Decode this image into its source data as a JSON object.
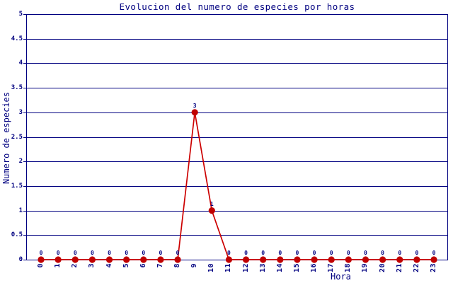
{
  "title": "Evolucion del numero de especies por horas",
  "colors": {
    "axis": "#000080",
    "grid": "#000080",
    "text": "#000080",
    "line": "#cc0000",
    "point_fill": "#c00000",
    "background": "#ffffff"
  },
  "chart_data": {
    "type": "line",
    "title": "Evolucion del numero de especies por horas",
    "xlabel": "Hora",
    "ylabel": "Numero de especies",
    "categories": [
      "0",
      "1",
      "2",
      "3",
      "4",
      "5",
      "6",
      "7",
      "8",
      "9",
      "10",
      "11",
      "12",
      "13",
      "14",
      "15",
      "16",
      "17",
      "18",
      "19",
      "20",
      "21",
      "22",
      "23"
    ],
    "values": [
      0,
      0,
      0,
      0,
      0,
      0,
      0,
      0,
      0,
      3,
      1,
      0,
      0,
      0,
      0,
      0,
      0,
      0,
      0,
      0,
      0,
      0,
      0,
      0
    ],
    "point_labels": [
      "0",
      "0",
      "0",
      "0",
      "0",
      "0",
      "0",
      "0",
      "0",
      "3",
      "1",
      "0",
      "0",
      "0",
      "0",
      "0",
      "0",
      "0",
      "0",
      "0",
      "0",
      "0",
      "0",
      "0"
    ],
    "ylim": [
      0,
      5
    ],
    "yticks": [
      0,
      0.5,
      1,
      1.5,
      2,
      2.5,
      3,
      3.5,
      4,
      4.5,
      5
    ],
    "grid": true,
    "legend": null,
    "marker": "filled-circle"
  }
}
